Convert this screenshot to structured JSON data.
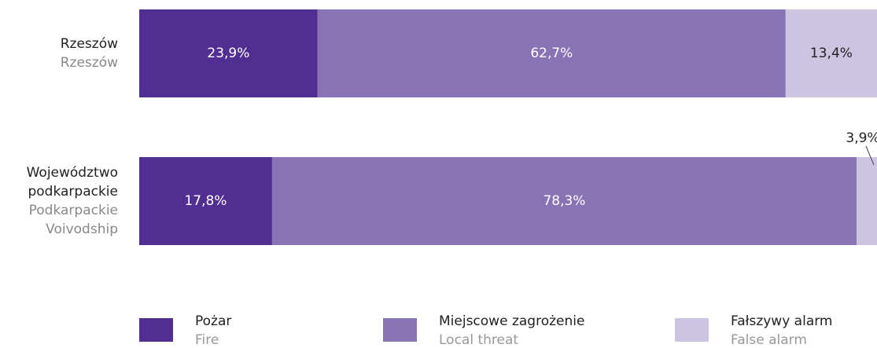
{
  "chart_data": {
    "type": "stacked_barh",
    "categories": [
      "Rzeszów",
      "Województwo podkarpackie"
    ],
    "categories_en": [
      "Rzeszów",
      "Podkarpackie Voivodship"
    ],
    "xlim": [
      0,
      100
    ],
    "series": [
      {
        "name": "Pożar",
        "name_en": "Fire",
        "color": "#512e91",
        "values": [
          23.9,
          17.8
        ],
        "value_labels": [
          "23,9%",
          "17,8%"
        ]
      },
      {
        "name": "Miejscowe zagrożenie",
        "name_en": "Local threat",
        "color": "#8873b4",
        "values": [
          62.7,
          78.3
        ],
        "value_labels": [
          "62,7%",
          "78,3%"
        ]
      },
      {
        "name": "Fałszywy alarm",
        "name_en": "False alarm",
        "color": "#cdc4e1",
        "values": [
          13.4,
          3.9
        ],
        "value_labels": [
          "13,4%",
          "3,9%"
        ]
      }
    ]
  }
}
